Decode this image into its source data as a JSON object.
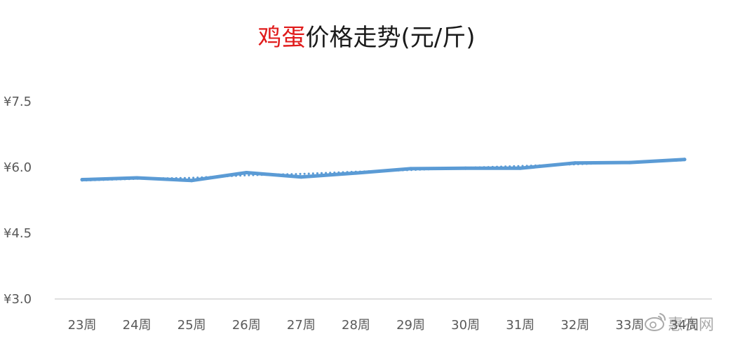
{
  "chart_data": {
    "type": "line",
    "title": {
      "highlight": "鸡蛋",
      "rest": "价格走势(元/斤)"
    },
    "xlabel": "",
    "ylabel": "",
    "categories": [
      "23周",
      "24周",
      "25周",
      "26周",
      "27周",
      "28周",
      "29周",
      "30周",
      "31周",
      "32周",
      "33周",
      "34周"
    ],
    "series": [
      {
        "values": [
          5.72,
          5.76,
          5.7,
          5.88,
          5.78,
          5.87,
          5.97,
          5.98,
          5.98,
          6.1,
          6.11,
          6.18
        ]
      }
    ],
    "trendline": {
      "style": "dotted",
      "values": [
        5.7,
        5.74,
        5.76,
        5.82,
        5.85,
        5.9,
        5.94,
        5.99,
        6.03,
        6.07,
        6.12,
        6.16
      ]
    },
    "yticks": [
      "¥3.0",
      "¥4.5",
      "¥6.0",
      "¥7.5"
    ],
    "ytick_values": [
      3.0,
      4.5,
      6.0,
      7.5
    ],
    "ylim": [
      3.0,
      7.5
    ],
    "grid": false,
    "colors": {
      "series": "#5b9bd5",
      "title_highlight": "#e01b1b",
      "axis": "#bfbfbf",
      "tick_text": "#595959"
    }
  },
  "watermark": {
    "text": "惠农网",
    "icon": "weibo-icon"
  }
}
